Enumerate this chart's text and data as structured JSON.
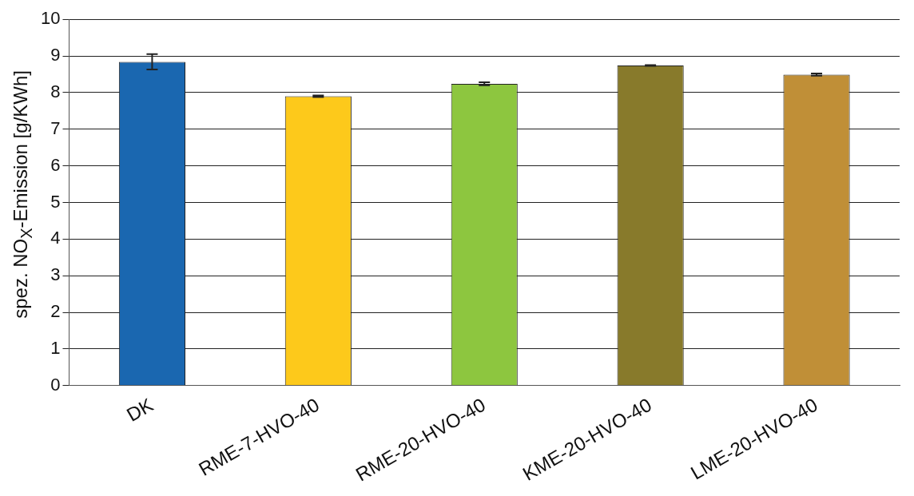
{
  "chart_data": {
    "type": "bar",
    "ylabel": "spez. NO$_{X}$-Emission [g/KWh]",
    "categories": [
      "DK",
      "RME-7-HVO-40",
      "RME-20-HVO-40",
      "KME-20-HVO-40",
      "LME-20-HVO-40"
    ],
    "values": [
      8.84,
      7.9,
      8.24,
      8.74,
      8.49
    ],
    "colors": [
      "#1a67b0",
      "#fdc91b",
      "#8dc63f",
      "#887a2b",
      "#c08f37"
    ],
    "errors": [
      0.21,
      0.02,
      0.04,
      0.01,
      0.03
    ],
    "ylim": [
      0,
      10
    ],
    "yticks": [
      0,
      1,
      2,
      3,
      4,
      5,
      6,
      7,
      8,
      9,
      10
    ],
    "grid": "y"
  }
}
